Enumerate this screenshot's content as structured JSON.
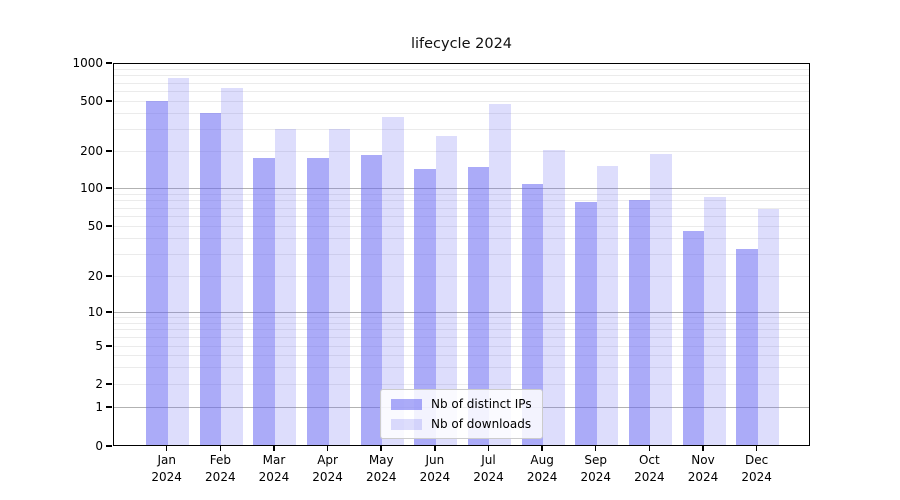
{
  "chart_data": {
    "type": "bar",
    "title": "lifecycle 2024",
    "categories": [
      "Jan 2024",
      "Feb 2024",
      "Mar 2024",
      "Apr 2024",
      "May 2024",
      "Jun 2024",
      "Jul 2024",
      "Aug 2024",
      "Sep 2024",
      "Oct 2024",
      "Nov 2024",
      "Dec 2024"
    ],
    "series": [
      {
        "name": "Nb of distinct IPs",
        "key": "distinct-ips",
        "fill": "rgba(102,102,243,0.55)",
        "color_hex": "#a9a9f7",
        "values": [
          500,
          400,
          175,
          175,
          185,
          143,
          147,
          107,
          78,
          80,
          46,
          33
        ]
      },
      {
        "name": "Nb of downloads",
        "key": "downloads",
        "fill": "rgba(102,102,243,0.22)",
        "color_hex": "#dcdcfa",
        "values": [
          760,
          630,
          300,
          300,
          370,
          265,
          470,
          205,
          150,
          188,
          85,
          68
        ]
      }
    ],
    "y_axis": {
      "scale": "symlog",
      "ylim": [
        0,
        1000
      ],
      "tick_values": [
        0,
        1,
        2,
        5,
        10,
        20,
        50,
        100,
        200,
        500,
        1000
      ],
      "tick_labels": [
        "0",
        "1",
        "2",
        "5",
        "10",
        "20",
        "50",
        "100",
        "200",
        "500",
        "1000"
      ],
      "minor_gridline_values": [
        2,
        3,
        4,
        5,
        6,
        7,
        8,
        9,
        20,
        30,
        40,
        50,
        60,
        70,
        80,
        90,
        200,
        300,
        400,
        500,
        600,
        700,
        800,
        900
      ],
      "major_gridline_values": [
        1,
        10,
        100
      ]
    },
    "legend": {
      "position": "lower center",
      "entries": [
        "Nb of distinct IPs",
        "Nb of downloads"
      ]
    },
    "grid": true,
    "colors": {
      "major_grid": "#b2b2b2",
      "minor_grid": "#ebebeb",
      "axis_frame": "#000000",
      "background": "#ffffff"
    }
  }
}
